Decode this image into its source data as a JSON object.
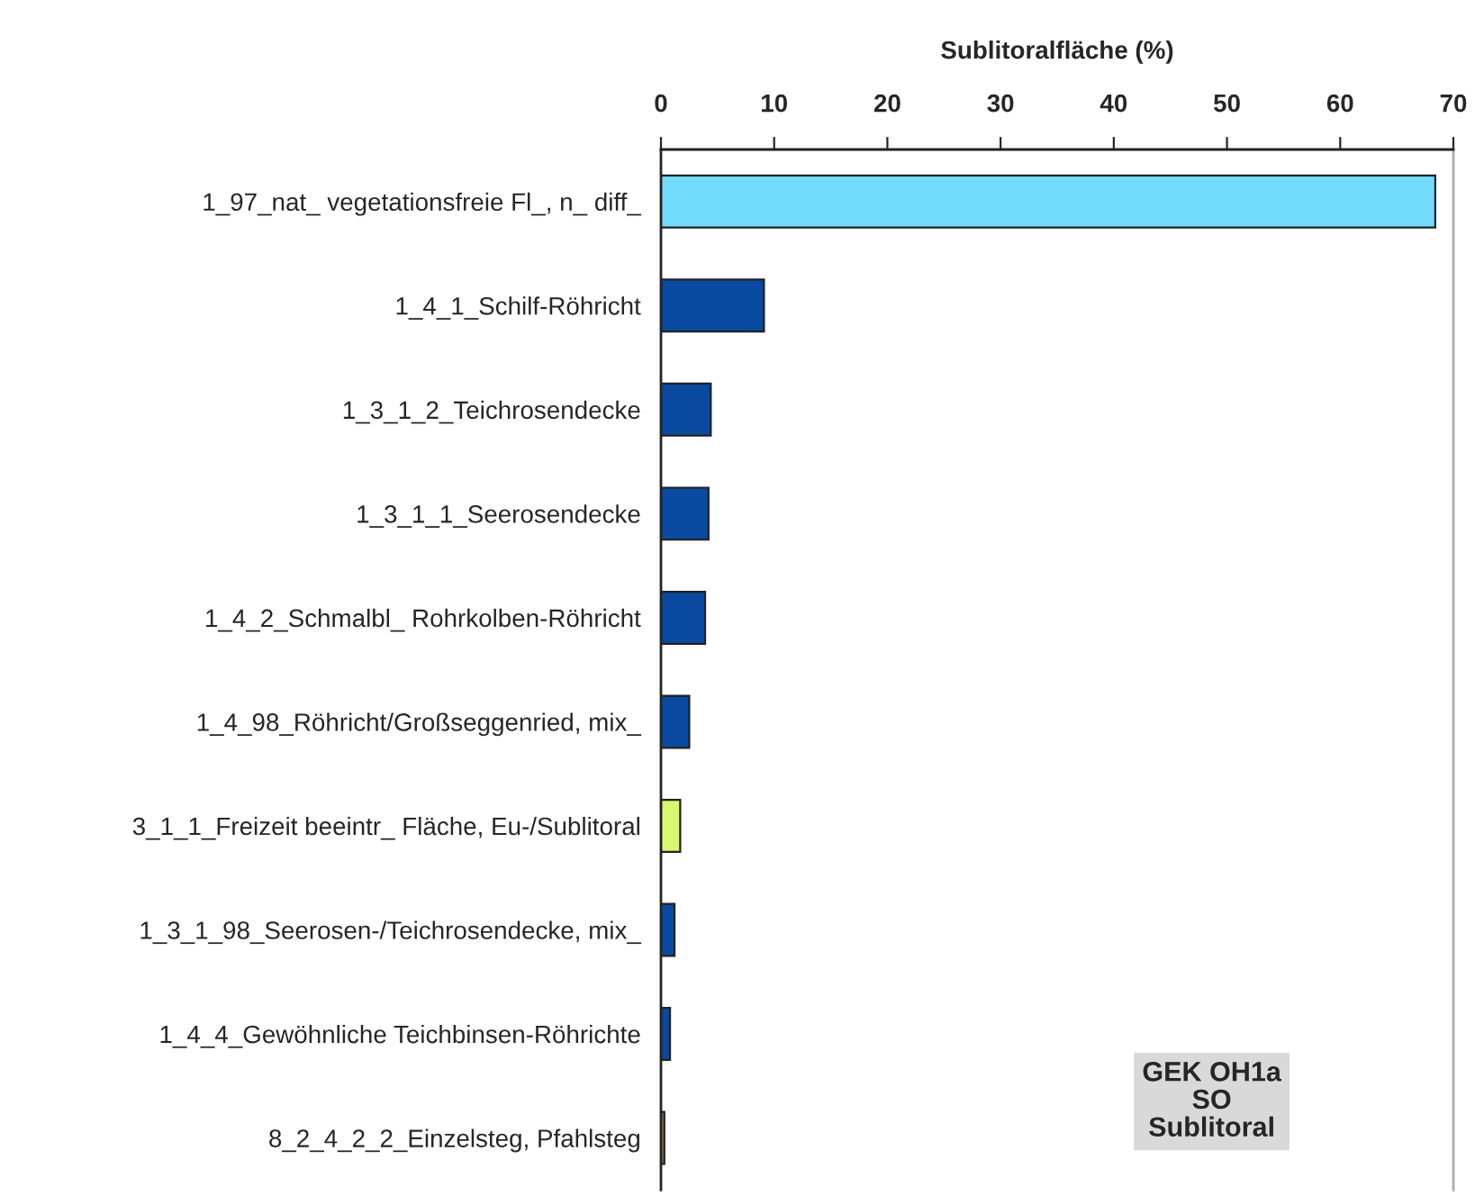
{
  "chart_data": {
    "type": "bar",
    "orientation": "horizontal",
    "xlabel": "Sublitoralfläche (%)",
    "categories": [
      "1_97_nat_ vegetationsfreie Fl_, n_ diff_",
      "1_4_1_Schilf-Röhricht",
      "1_3_1_2_Teichrosendecke",
      "1_3_1_1_Seerosendecke",
      "1_4_2_Schmalbl_ Rohrkolben-Röhricht",
      "1_4_98_Röhricht/Großseggenried, mix_",
      "3_1_1_Freizeit beeintr_ Fläche, Eu-/Sublitoral",
      "1_3_1_98_Seerosen-/Teichrosendecke, mix_",
      "1_4_4_Gewöhnliche Teichbinsen-Röhrichte",
      "8_2_4_2_2_Einzelsteg, Pfahlsteg"
    ],
    "values": [
      68.4,
      9.1,
      4.4,
      4.2,
      3.9,
      2.5,
      1.7,
      1.2,
      0.8,
      0.3
    ],
    "colors": [
      "#72dcfa",
      "#0a4aa0",
      "#0a4aa0",
      "#0a4aa0",
      "#0a4aa0",
      "#0a4aa0",
      "#d8f870",
      "#0a4aa0",
      "#0a4aa0",
      "#a08060"
    ],
    "xlim": [
      0,
      70
    ],
    "xticks": [
      0,
      10,
      20,
      30,
      40,
      50,
      60,
      70
    ],
    "grid": false,
    "legend": false,
    "annotations": [
      "GEK OH1a\nSO\nSublitoral"
    ]
  }
}
